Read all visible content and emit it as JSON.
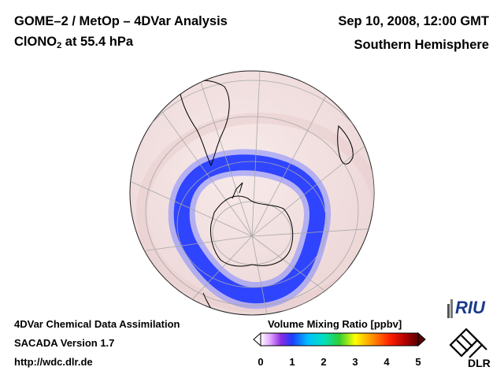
{
  "header": {
    "title": "GOME–2 / MetOp – 4DVar Analysis",
    "species": "ClONO",
    "species_sub": "2",
    "species_level": " at 55.4 hPa",
    "datetime": "Sep 10, 2008, 12:00 GMT",
    "region": "Southern Hemisphere"
  },
  "footer": {
    "line1": "4DVar Chemical Data Assimilation",
    "line2": "SACADA Version 1.7",
    "line3": "http://wdc.dlr.de"
  },
  "colorbar": {
    "title": "Volume Mixing Ratio [ppbv]",
    "ticks": [
      "0",
      "1",
      "2",
      "3",
      "4",
      "5"
    ],
    "range": [
      0,
      5
    ],
    "colors": [
      "#ffffff",
      "#d98cff",
      "#8a2be2",
      "#1e3cff",
      "#00bfff",
      "#00e0c0",
      "#32cd32",
      "#ffff00",
      "#ff9900",
      "#ff2000",
      "#b00000",
      "#5a0000"
    ]
  },
  "logos": {
    "riu": "RIU",
    "dlr": "DLR"
  },
  "colors": {
    "globe_fill": "#f3e3e3",
    "ring_outer": "#5560ff",
    "ring_inner": "#2038ff",
    "coastline": "#000000",
    "grid": "#a8a8a8"
  }
}
